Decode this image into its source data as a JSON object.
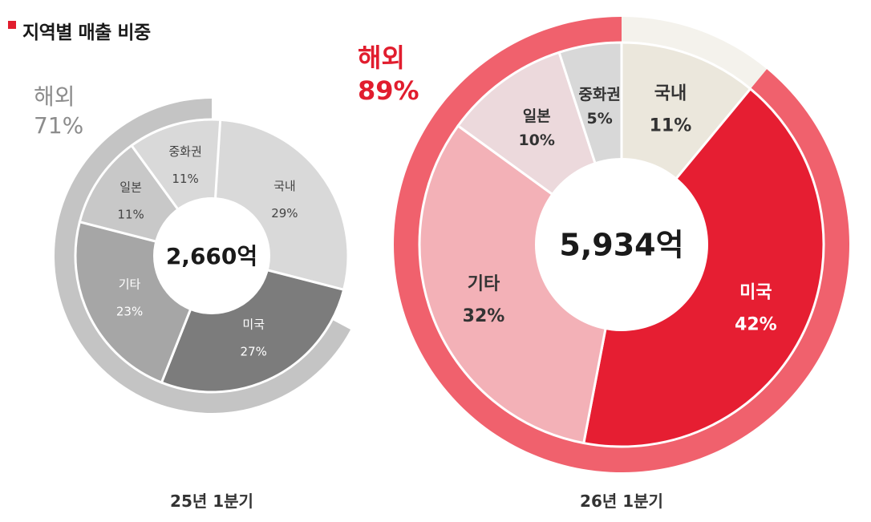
{
  "title": "지역별 매출 비중",
  "colors": {
    "accent": "#e11d2e",
    "gray_outer": "#c4c4c4",
    "red_outer": "#f0616d"
  },
  "chart_data": [
    {
      "type": "donut",
      "period": "25년 1분기",
      "total": "2,660억",
      "outer_label": "해외",
      "outer_value": "71%",
      "outer_percent": 71,
      "segments": [
        {
          "name": "국내",
          "value": 29,
          "label": "29%",
          "color": "#d9d9d9",
          "text_color": "#444444"
        },
        {
          "name": "미국",
          "value": 27,
          "label": "27%",
          "color": "#7c7c7c",
          "text_color": "#ffffff"
        },
        {
          "name": "기타",
          "value": 23,
          "label": "23%",
          "color": "#a6a6a6",
          "text_color": "#ffffff"
        },
        {
          "name": "일본",
          "value": 11,
          "label": "11%",
          "color": "#c8c8c8",
          "text_color": "#444444"
        },
        {
          "name": "중화권",
          "value": 11,
          "label": "11%",
          "color": "#d9d9d9",
          "text_color": "#444444"
        }
      ]
    },
    {
      "type": "donut",
      "period": "26년 1분기",
      "total": "5,934억",
      "outer_label": "해외",
      "outer_value": "89%",
      "outer_percent": 89,
      "segments": [
        {
          "name": "국내",
          "value": 11,
          "label": "11%",
          "color": "#ebe7dc",
          "text_color": "#333333"
        },
        {
          "name": "미국",
          "value": 42,
          "label": "42%",
          "color": "#e61e32",
          "text_color": "#ffffff"
        },
        {
          "name": "기타",
          "value": 32,
          "label": "32%",
          "color": "#f3b1b7",
          "text_color": "#333333"
        },
        {
          "name": "일본",
          "value": 10,
          "label": "10%",
          "color": "#ecd9dc",
          "text_color": "#333333"
        },
        {
          "name": "중화권",
          "value": 5,
          "label": "5%",
          "color": "#d8d8d8",
          "text_color": "#333333"
        }
      ]
    }
  ]
}
